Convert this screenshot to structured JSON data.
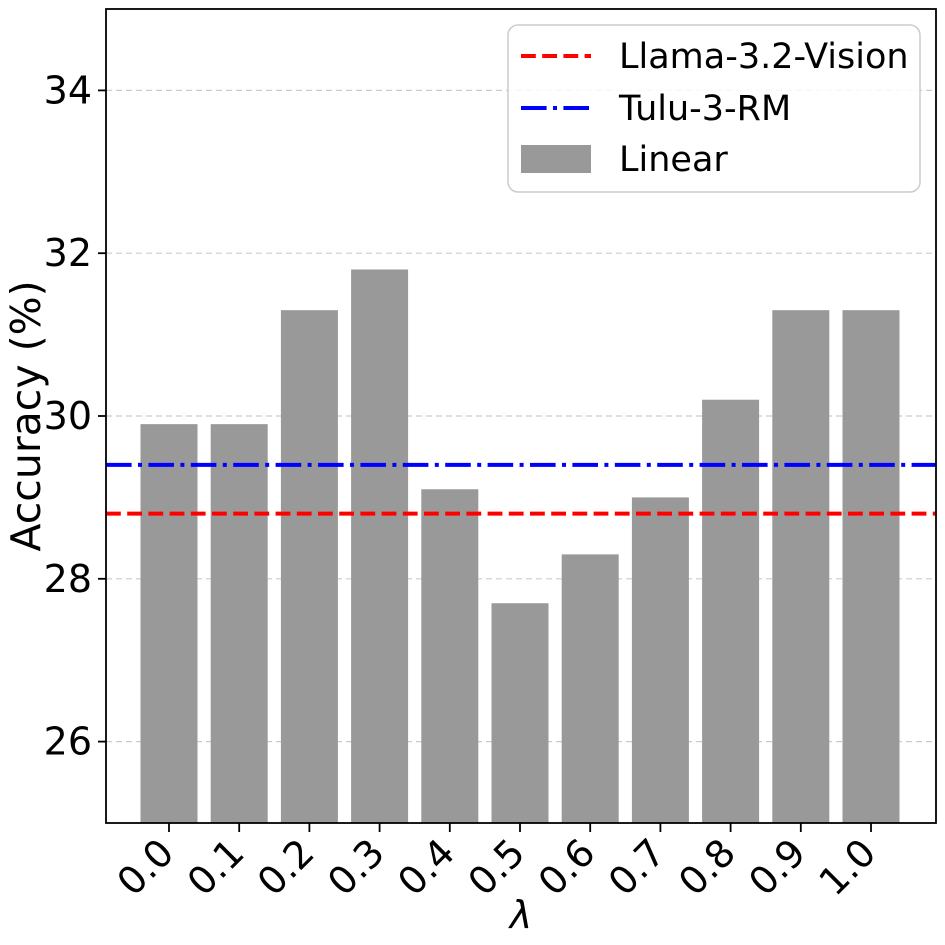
{
  "chart_data": {
    "type": "bar",
    "title": "",
    "xlabel": "λ",
    "ylabel": "Accuracy (%)",
    "categories": [
      "0.0",
      "0.1",
      "0.2",
      "0.3",
      "0.4",
      "0.5",
      "0.6",
      "0.7",
      "0.8",
      "0.9",
      "1.0"
    ],
    "series": [
      {
        "name": "Linear",
        "values": [
          29.9,
          29.9,
          31.3,
          31.8,
          29.1,
          27.7,
          28.3,
          29.0,
          30.2,
          31.3,
          31.3
        ]
      }
    ],
    "bar_color": "#999999",
    "ylim": [
      25,
      35
    ],
    "yticks": [
      26,
      28,
      30,
      32,
      34
    ],
    "grid": true,
    "grid_color": "#cccccc",
    "reference_lines": [
      {
        "label": "Llama-3.2-Vision",
        "value": 28.8,
        "color": "#ff0000",
        "style": "dashed"
      },
      {
        "label": "Tulu-3-RM",
        "value": 29.4,
        "color": "#0000ff",
        "style": "dashdot"
      }
    ],
    "legend": {
      "position": "upper-right",
      "entries": [
        {
          "label": "Llama-3.2-Vision",
          "marker": "line-dashed",
          "color": "#ff0000"
        },
        {
          "label": "Tulu-3-RM",
          "marker": "line-dashdot",
          "color": "#0000ff"
        },
        {
          "label": "Linear",
          "marker": "patch",
          "color": "#999999"
        }
      ]
    }
  }
}
